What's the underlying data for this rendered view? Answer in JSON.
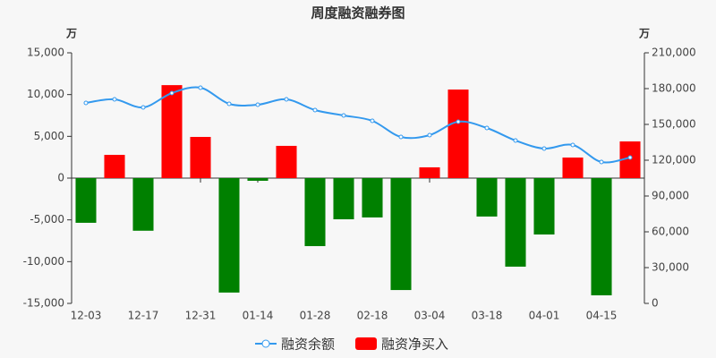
{
  "chart_data": {
    "type": "bar-line",
    "title": "周度融资融券图",
    "y_unit": "万",
    "y2_unit": "万",
    "categories": [
      "12-03",
      null,
      "12-17",
      null,
      "12-31",
      null,
      "01-14",
      null,
      "01-28",
      null,
      "02-18",
      null,
      "03-04",
      null,
      "03-18",
      null,
      "04-01",
      null,
      "04-15",
      null
    ],
    "series": [
      {
        "name": "融资余额",
        "type": "line",
        "axis": "y2",
        "color": "#3399ee",
        "values": [
          168000,
          171000,
          164250,
          176250,
          180750,
          167250,
          166500,
          171000,
          162000,
          157500,
          153000,
          139500,
          141000,
          152250,
          147000,
          136500,
          129750,
          132750,
          118500,
          122250
        ]
      },
      {
        "name": "融资净买入",
        "type": "bar",
        "axis": "y",
        "color": "#ff0000",
        "negative_color": "#008000",
        "values": [
          -5350,
          2780,
          -6300,
          11130,
          4930,
          -13700,
          -320,
          3860,
          -8140,
          -4930,
          -4710,
          -13400,
          1290,
          10600,
          -4600,
          -10600,
          -6750,
          2460,
          -14030,
          4390
        ]
      }
    ],
    "ylim": [
      -15000,
      15000
    ],
    "yticks": [
      {
        "value": -15000,
        "label": "-15,000"
      },
      {
        "value": -10000,
        "label": "-10,000"
      },
      {
        "value": -5000,
        "label": "-5,000"
      },
      0,
      {
        "value": 5000,
        "label": "5,000"
      },
      {
        "value": 10000,
        "label": "10,000"
      },
      {
        "value": 15000,
        "label": "15,000"
      }
    ],
    "y2lim": [
      0,
      210000
    ],
    "y2ticks": [
      0,
      {
        "value": 30000,
        "label": "30,000"
      },
      {
        "value": 60000,
        "label": "60,000"
      },
      {
        "value": 90000,
        "label": "90,000"
      },
      {
        "value": 120000,
        "label": "120,000"
      },
      {
        "value": 150000,
        "label": "150,000"
      },
      {
        "value": 180000,
        "label": "180,000"
      },
      {
        "value": 210000,
        "label": "210,000"
      }
    ]
  }
}
